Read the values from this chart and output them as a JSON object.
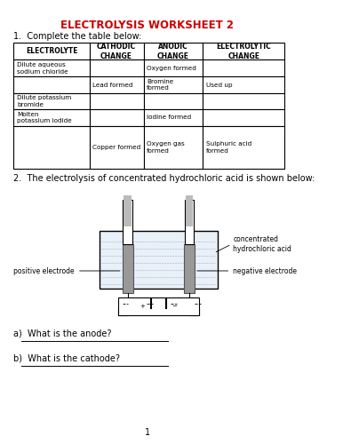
{
  "title": "ELECTROLYSIS WORKSHEET 2",
  "title_color": "#cc0000",
  "background_color": "#ffffff",
  "q1_text": "1.  Complete the table below:",
  "table_headers": [
    "ELECTROLYTE",
    "CATHODIC\nCHANGE",
    "ANODIC\nCHANGE",
    "ELECTROLYTIC\nCHANGE"
  ],
  "table_rows": [
    [
      "Dilute aqueous\nsodium chloride",
      "",
      "Oxygen formed",
      ""
    ],
    [
      "",
      "Lead formed",
      "Bromine\nformed",
      "Used up"
    ],
    [
      "Dilute potassium\nbromide",
      "",
      "",
      ""
    ],
    [
      "Molten\npotassium iodide",
      "",
      "Iodine formed",
      ""
    ],
    [
      "",
      "Copper formed",
      "Oxygen gas\nformed",
      "Sulphuric acid\nformed"
    ]
  ],
  "q2_text": "2.  The electrolysis of concentrated hydrochloric acid is shown below:",
  "qa_text": "a)  What is the anode?",
  "qb_text": "b)  What is the cathode?",
  "page_number": "1"
}
